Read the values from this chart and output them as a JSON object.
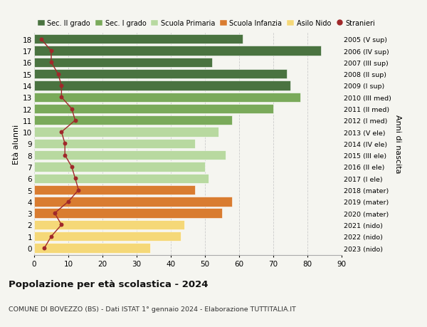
{
  "ages": [
    18,
    17,
    16,
    15,
    14,
    13,
    12,
    11,
    10,
    9,
    8,
    7,
    6,
    5,
    4,
    3,
    2,
    1,
    0
  ],
  "bar_values": [
    61,
    84,
    52,
    74,
    75,
    78,
    70,
    58,
    54,
    47,
    56,
    50,
    51,
    47,
    58,
    55,
    44,
    43,
    34
  ],
  "stranieri": [
    2,
    5,
    5,
    7,
    8,
    8,
    11,
    12,
    8,
    9,
    9,
    11,
    12,
    13,
    10,
    6,
    8,
    5,
    3
  ],
  "right_labels": [
    "2005 (V sup)",
    "2006 (IV sup)",
    "2007 (III sup)",
    "2008 (II sup)",
    "2009 (I sup)",
    "2010 (III med)",
    "2011 (II med)",
    "2012 (I med)",
    "2013 (V ele)",
    "2014 (IV ele)",
    "2015 (III ele)",
    "2016 (II ele)",
    "2017 (I ele)",
    "2018 (mater)",
    "2019 (mater)",
    "2020 (mater)",
    "2021 (nido)",
    "2022 (nido)",
    "2023 (nido)"
  ],
  "bar_colors": [
    "#4a7340",
    "#4a7340",
    "#4a7340",
    "#4a7340",
    "#4a7340",
    "#7aaa5a",
    "#7aaa5a",
    "#7aaa5a",
    "#b8d9a0",
    "#b8d9a0",
    "#b8d9a0",
    "#b8d9a0",
    "#b8d9a0",
    "#d97c30",
    "#d97c30",
    "#d97c30",
    "#f5d878",
    "#f5d878",
    "#f5d878"
  ],
  "legend_labels": [
    "Sec. II grado",
    "Sec. I grado",
    "Scuola Primaria",
    "Scuola Infanzia",
    "Asilo Nido",
    "Stranieri"
  ],
  "legend_colors": [
    "#4a7340",
    "#7aaa5a",
    "#b8d9a0",
    "#d97c30",
    "#f5d878",
    "#a0282a"
  ],
  "title": "Popolazione per età scolastica - 2024",
  "subtitle": "COMUNE DI BOVEZZO (BS) - Dati ISTAT 1° gennaio 2024 - Elaborazione TUTTITALIA.IT",
  "ylabel_left": "Età alunni",
  "ylabel_right": "Anni di nascita",
  "xlim": [
    0,
    90
  ],
  "xticks": [
    0,
    10,
    20,
    30,
    40,
    50,
    60,
    70,
    80,
    90
  ],
  "stranieri_color": "#a0282a",
  "bg_color": "#f5f5f0"
}
